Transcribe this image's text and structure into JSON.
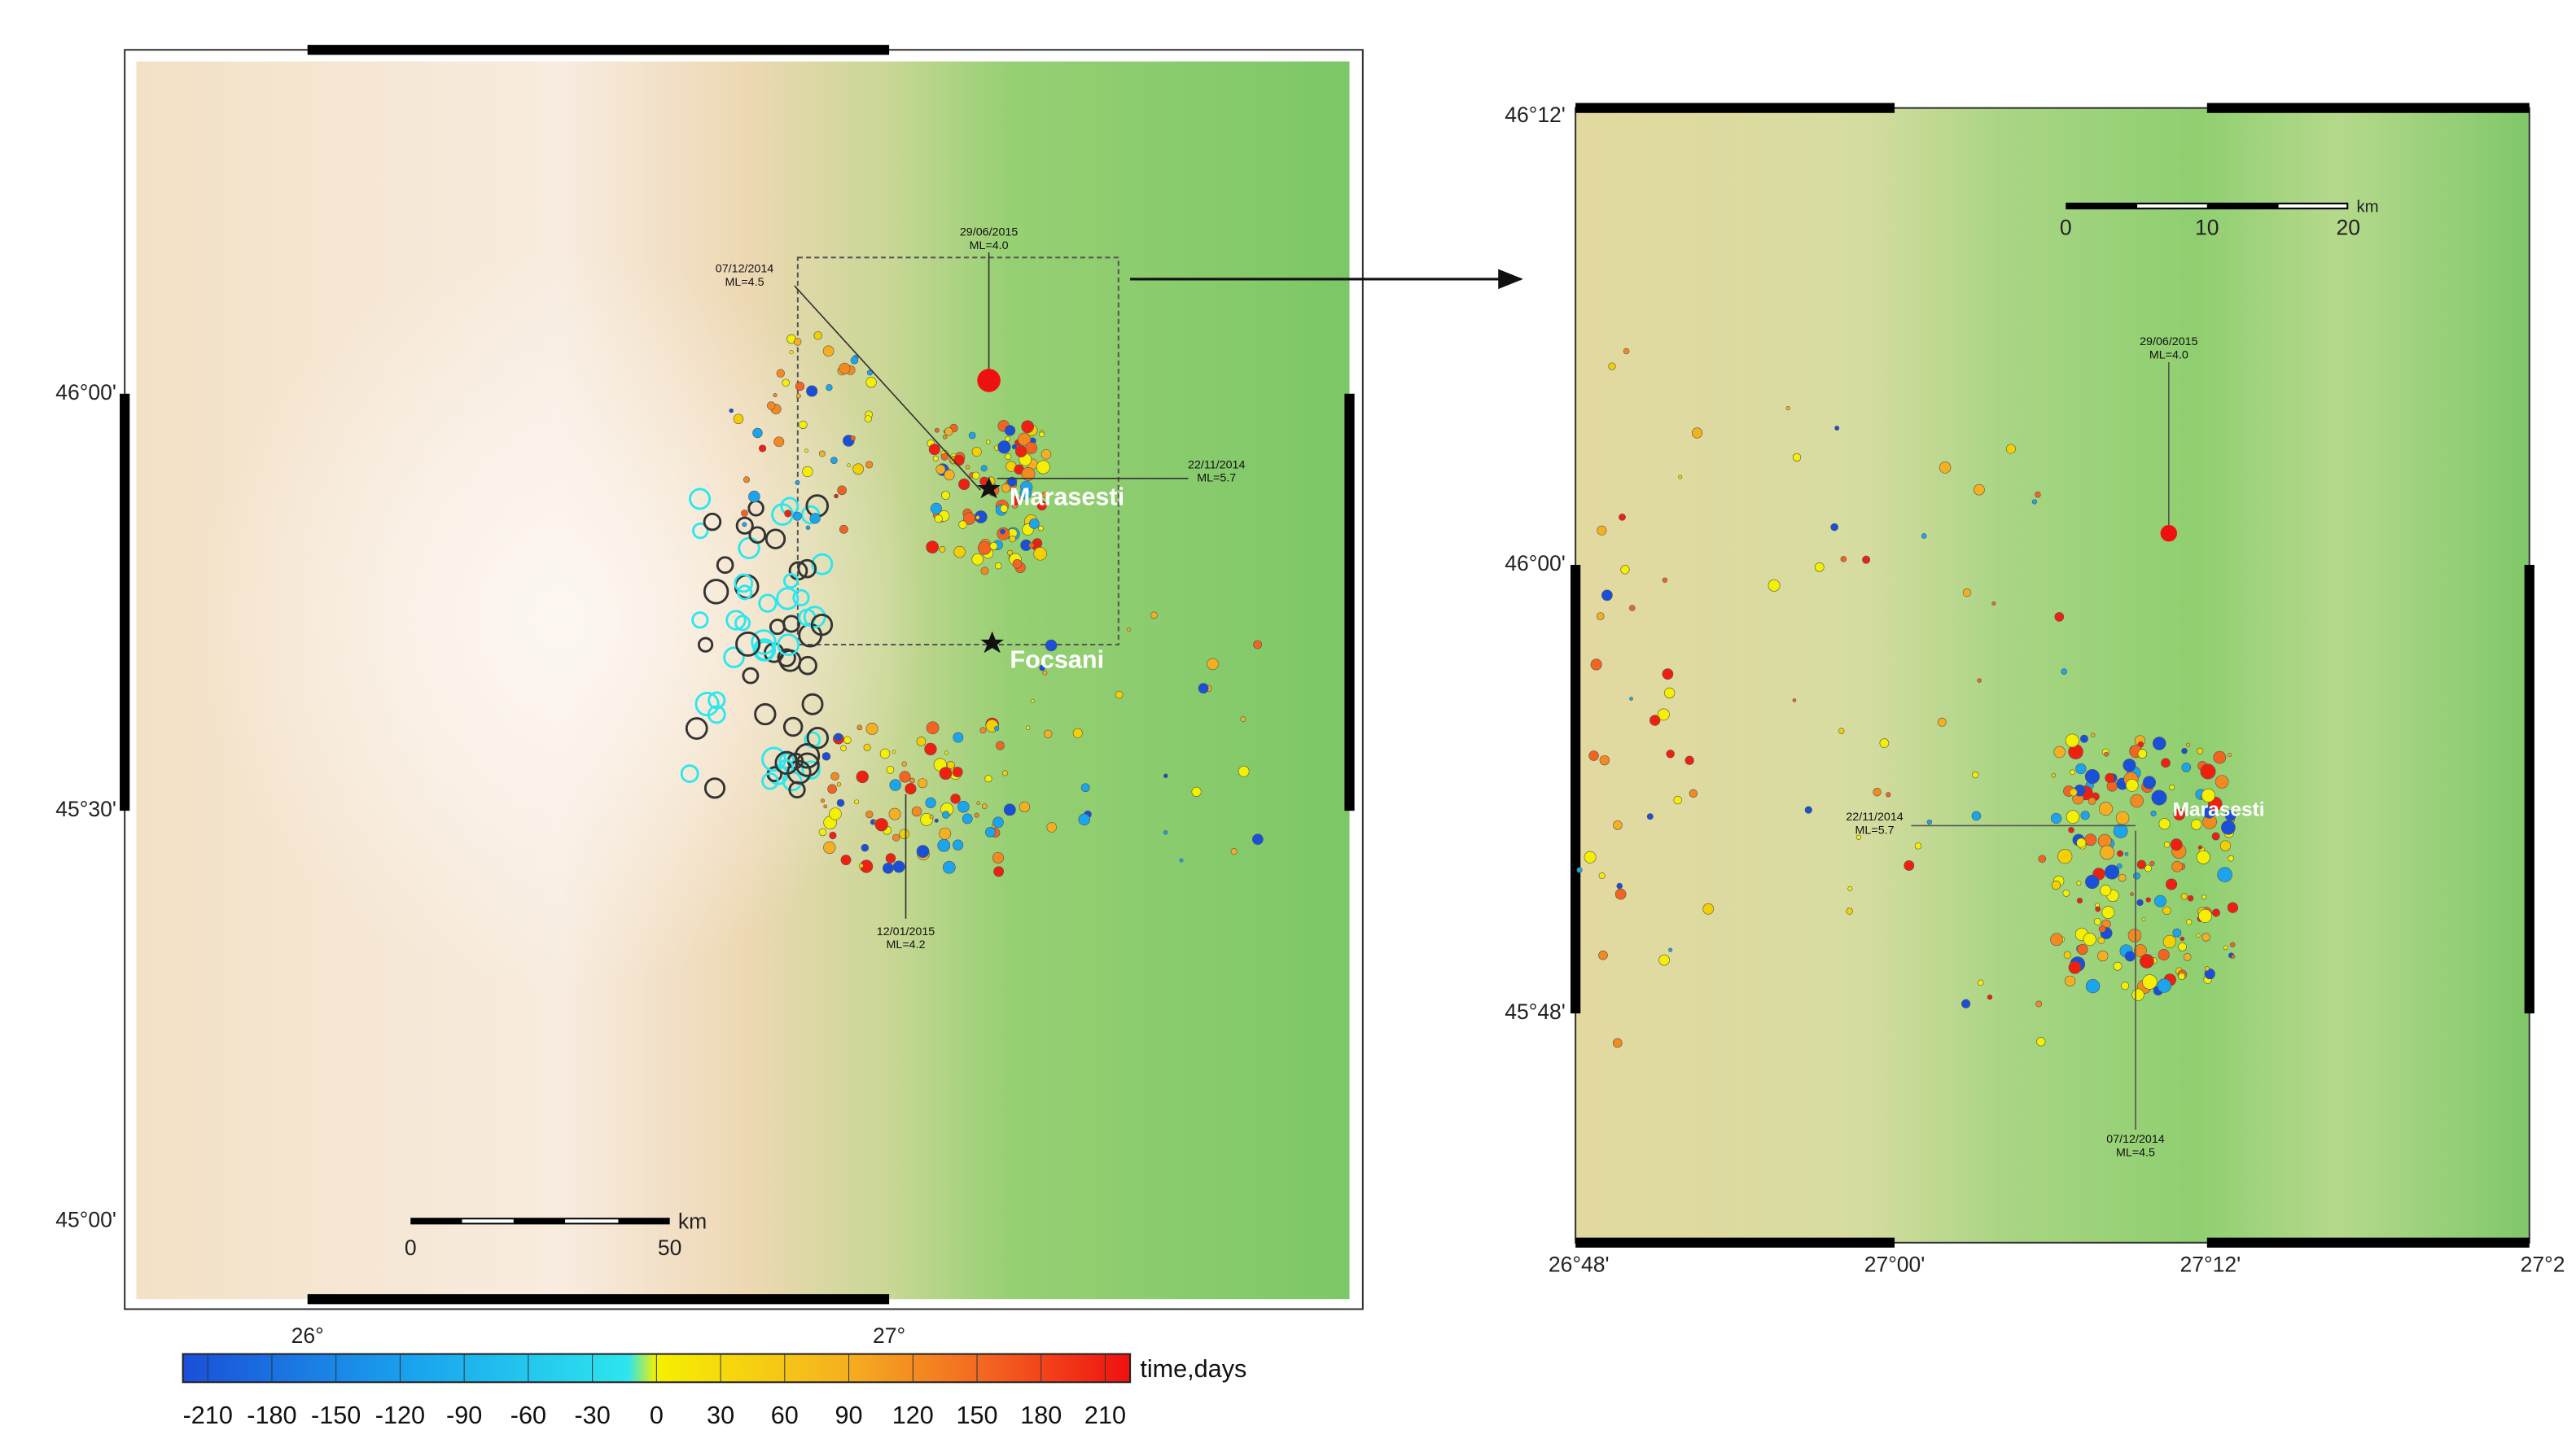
{
  "left_map": {
    "lat_labels": [
      "46°00'",
      "45°30'",
      "45°00'"
    ],
    "lon_labels": [
      "26°",
      "27°"
    ],
    "places": [
      "Marasesti",
      "Focsani"
    ],
    "annotations": [
      {
        "date": "29/06/2015",
        "magnitude": "ML=4.0"
      },
      {
        "date": "07/12/2014",
        "magnitude": "ML=4.5"
      },
      {
        "date": "22/11/2014",
        "magnitude": "ML=5.7"
      },
      {
        "date": "12/01/2015",
        "magnitude": "ML=4.2"
      }
    ],
    "scale_bar": {
      "ticks": [
        "0",
        "50"
      ],
      "unit": "km"
    }
  },
  "right_map": {
    "lat_labels": [
      "46°12'",
      "46°00'",
      "45°48'"
    ],
    "lon_labels": [
      "26°48'",
      "27°00'",
      "27°12'",
      "27°2"
    ],
    "places": [
      "Marasesti"
    ],
    "annotations": [
      {
        "date": "29/06/2015",
        "magnitude": "ML=4.0"
      },
      {
        "date": "22/11/2014",
        "magnitude": "ML=5.7"
      },
      {
        "date": "07/12/2014",
        "magnitude": "ML=4.5"
      }
    ],
    "scale_bar": {
      "ticks": [
        "0",
        "10",
        "20"
      ],
      "unit": "km"
    }
  },
  "colorbar": {
    "ticks": [
      -210,
      -180,
      -150,
      -120,
      -90,
      -60,
      -30,
      0,
      30,
      60,
      90,
      120,
      150,
      180,
      210
    ],
    "label": "time,days"
  }
}
